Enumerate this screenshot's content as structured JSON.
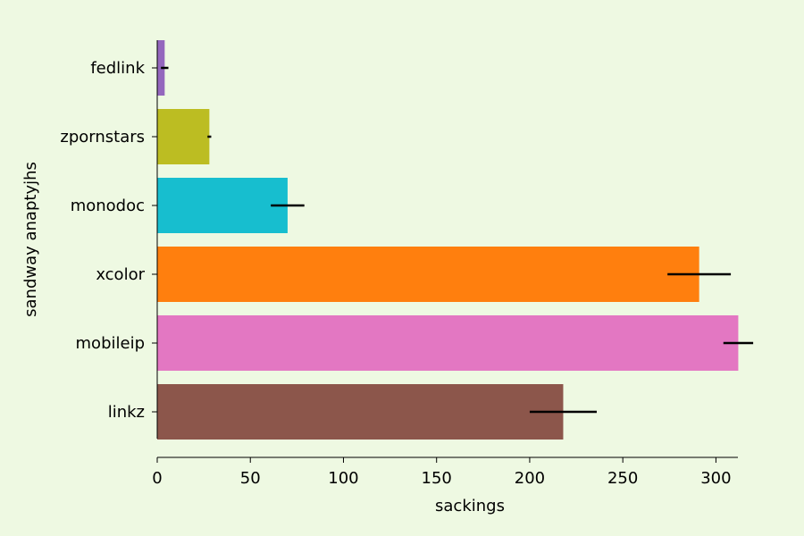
{
  "chart_data": {
    "type": "bar",
    "orientation": "horizontal",
    "title": "",
    "xlabel": "sackings",
    "ylabel": "sandway anaptyjhs",
    "categories": [
      "fedlink",
      "zpornstars",
      "monodoc",
      "xcolor",
      "mobileip",
      "linkz"
    ],
    "values": [
      4,
      28,
      70,
      291,
      312,
      218
    ],
    "errors": [
      2,
      1,
      9,
      17,
      8,
      18
    ],
    "colors": [
      "#9467bd",
      "#bcbd22",
      "#17becf",
      "#ff7f0e",
      "#e377c2",
      "#8c564b"
    ],
    "xlim": [
      0,
      330
    ],
    "xticks": [
      0,
      50,
      100,
      150,
      200,
      250,
      300
    ],
    "grid": false,
    "legend": "none",
    "background": "#eef9e2"
  }
}
